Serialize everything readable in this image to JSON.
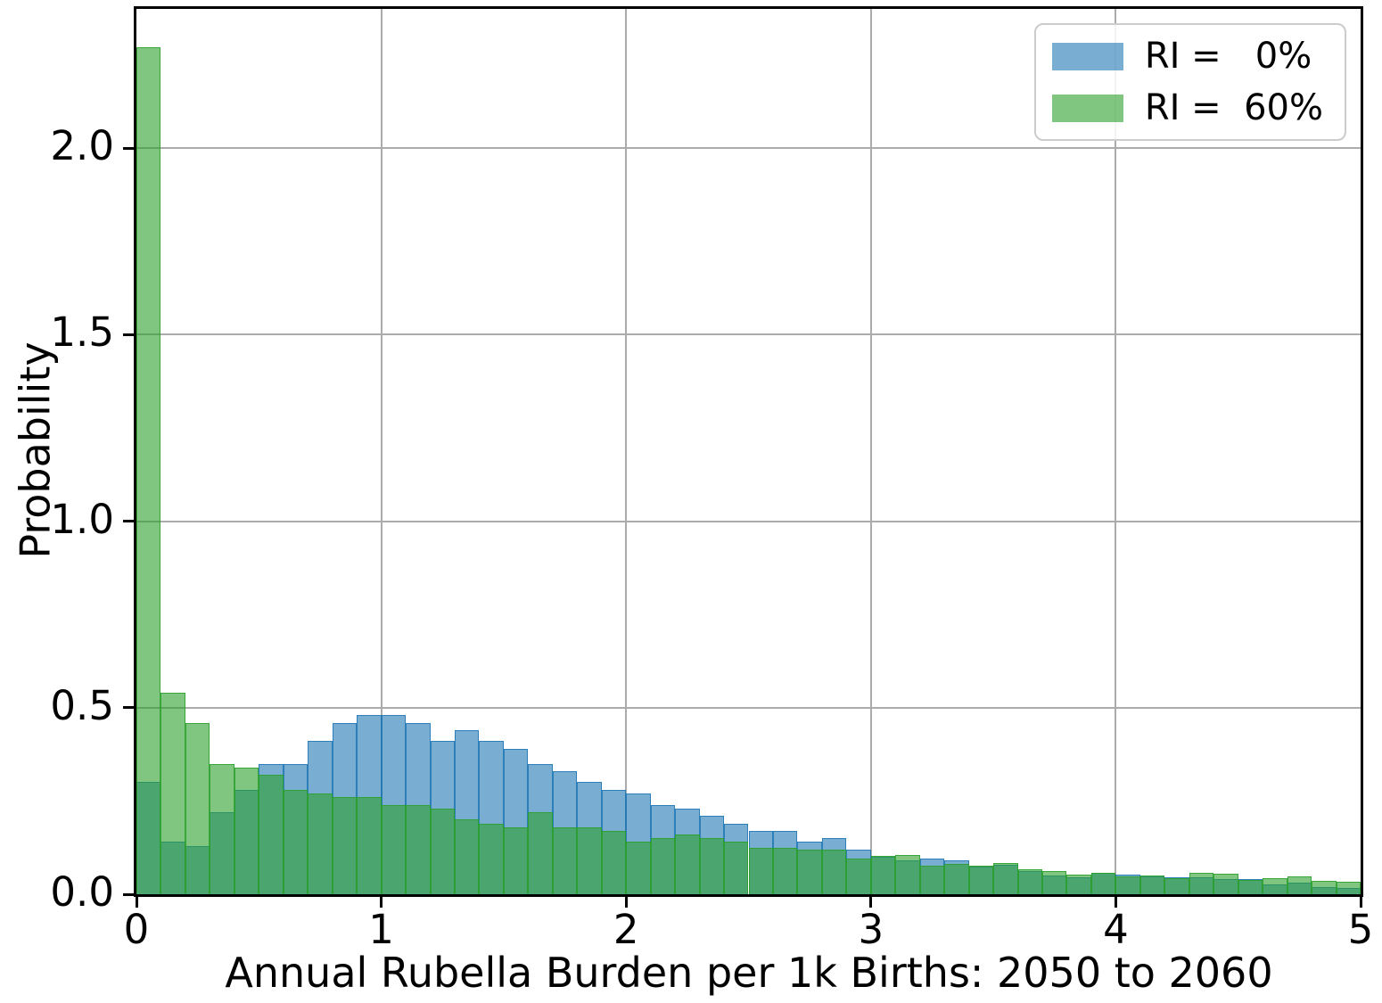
{
  "chart_data": {
    "type": "bar",
    "subtype": "overlaid-histogram",
    "title": "",
    "xlabel": "Annual Rubella Burden per 1k Births: 2050 to 2060",
    "ylabel": "Probability",
    "xlim": [
      0,
      5
    ],
    "ylim": [
      0,
      2.37
    ],
    "bin_start": 0,
    "bin_width": 0.1,
    "x_ticks": [
      "0",
      "1",
      "2",
      "3",
      "4",
      "5"
    ],
    "y_ticks": [
      "0.0",
      "0.5",
      "1.0",
      "1.5",
      "2.0"
    ],
    "grid": true,
    "grid_color": "#ababab",
    "spine_color": "#000000",
    "legend_position": "upper right",
    "series": [
      {
        "name": "RI =   0%",
        "color": "#1f77b4",
        "fill_alpha": 0.6,
        "rendered_fill_on_white": "#79add2",
        "values": [
          0.3,
          0.14,
          0.13,
          0.22,
          0.28,
          0.35,
          0.35,
          0.41,
          0.46,
          0.48,
          0.48,
          0.46,
          0.41,
          0.44,
          0.41,
          0.39,
          0.35,
          0.33,
          0.3,
          0.28,
          0.27,
          0.24,
          0.23,
          0.21,
          0.19,
          0.17,
          0.17,
          0.14,
          0.15,
          0.12,
          0.1,
          0.091,
          0.095,
          0.09,
          0.075,
          0.08,
          0.062,
          0.05,
          0.045,
          0.057,
          0.053,
          0.048,
          0.045,
          0.045,
          0.04,
          0.04,
          0.026,
          0.03,
          0.02,
          0.016
        ]
      },
      {
        "name": "RI =  60%",
        "color": "#2ca02c",
        "fill_alpha": 0.6,
        "rendered_fill_on_white": "#80c680",
        "values": [
          2.27,
          0.54,
          0.46,
          0.35,
          0.34,
          0.32,
          0.28,
          0.27,
          0.26,
          0.26,
          0.24,
          0.24,
          0.23,
          0.2,
          0.19,
          0.18,
          0.22,
          0.18,
          0.18,
          0.17,
          0.14,
          0.15,
          0.16,
          0.15,
          0.14,
          0.125,
          0.125,
          0.12,
          0.12,
          0.096,
          0.103,
          0.104,
          0.077,
          0.081,
          0.077,
          0.084,
          0.068,
          0.063,
          0.053,
          0.057,
          0.048,
          0.05,
          0.043,
          0.057,
          0.055,
          0.038,
          0.043,
          0.048,
          0.037,
          0.033
        ]
      }
    ]
  },
  "legend": {
    "entries": [
      {
        "label": "RI =   0%",
        "swatch": "blue"
      },
      {
        "label": "RI =  60%",
        "swatch": "green"
      }
    ]
  }
}
